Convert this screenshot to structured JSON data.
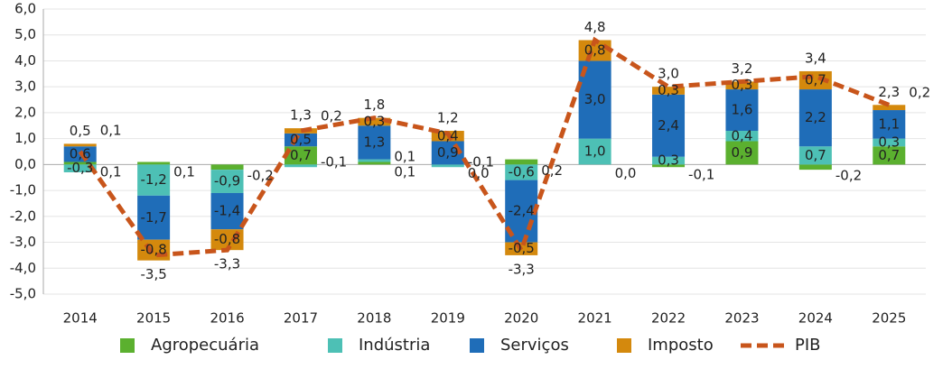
{
  "chart_data": {
    "type": "bar",
    "stacked": true,
    "grid": true,
    "categories": [
      "2014",
      "2015",
      "2016",
      "2017",
      "2018",
      "2019",
      "2020",
      "2021",
      "2022",
      "2023",
      "2024",
      "2025"
    ],
    "ylim": [
      -5,
      6
    ],
    "yticks": [
      {
        "value": -5,
        "label": "-5,0"
      },
      {
        "value": -4,
        "label": "-4,0"
      },
      {
        "value": -3,
        "label": "-3,0"
      },
      {
        "value": -2,
        "label": "-2,0"
      },
      {
        "value": -1,
        "label": "-1,0"
      },
      {
        "value": 0,
        "label": "0,0"
      },
      {
        "value": 1,
        "label": "1,0"
      },
      {
        "value": 2,
        "label": "2,0"
      },
      {
        "value": 3,
        "label": "3,0"
      },
      {
        "value": 4,
        "label": "4,0"
      },
      {
        "value": 5,
        "label": "5,0"
      },
      {
        "value": 6,
        "label": "6,0"
      }
    ],
    "series": [
      {
        "name": "Agropecuária",
        "color": "#5bb02f",
        "label_color": "#222",
        "values": [
          0.1,
          0.1,
          -0.2,
          0.7,
          0.1,
          0.0,
          0.2,
          0.0,
          -0.1,
          0.9,
          -0.2,
          0.7
        ],
        "value_labels": [
          "0,1",
          "0,1",
          "-0,2",
          "0,7",
          "0,1",
          "0,0",
          "0,2",
          "0,0",
          "-0,1",
          "0,9",
          "-0,2",
          "0,7"
        ]
      },
      {
        "name": "Indústria",
        "color": "#4dc0b5",
        "label_color": "#222",
        "values": [
          -0.3,
          -1.2,
          -0.9,
          -0.1,
          0.1,
          -0.1,
          -0.6,
          1.0,
          0.3,
          0.4,
          0.7,
          0.3
        ],
        "value_labels": [
          "-0,3",
          "-1,2",
          "-0,9",
          "-0,1",
          "0,1",
          "-0,1",
          "-0,6",
          "1,0",
          "0,3",
          "0,4",
          "0,7",
          "0,3"
        ]
      },
      {
        "name": "Serviços",
        "color": "#1f6db8",
        "label_color": "#fff",
        "values": [
          0.6,
          -1.7,
          -1.4,
          0.5,
          1.3,
          0.9,
          -2.4,
          3.0,
          2.4,
          1.6,
          2.2,
          1.1
        ],
        "value_labels": [
          "0,6",
          "-1,7",
          "-1,4",
          "0,5",
          "1,3",
          "0,9",
          "-2,4",
          "3,0",
          "2,4",
          "1,6",
          "2,2",
          "1,1"
        ]
      },
      {
        "name": "Imposto",
        "color": "#d4890d",
        "label_color": "#fff",
        "values": [
          0.1,
          -0.8,
          -0.8,
          0.2,
          0.3,
          0.4,
          -0.5,
          0.8,
          0.3,
          0.3,
          0.7,
          0.2
        ],
        "value_labels": [
          "0,1",
          "-0,8",
          "-0,8",
          "0,2",
          "0,3",
          "0,4",
          "-0,5",
          "0,8",
          "0,3",
          "0,3",
          "0,7",
          "0,2"
        ]
      },
      {
        "name": "PIB",
        "type": "line",
        "line_style": "dashed",
        "color": "#c8551b",
        "values": [
          0.5,
          -3.5,
          -3.3,
          1.3,
          1.8,
          1.2,
          -3.3,
          4.8,
          3.0,
          3.2,
          3.4,
          2.3
        ],
        "value_labels": [
          "0,5",
          "-3,5",
          "-3,3",
          "1,3",
          "1,8",
          "1,2",
          "-3,3",
          "4,8",
          "3,0",
          "3,2",
          "3,4",
          "2,3"
        ]
      }
    ]
  }
}
